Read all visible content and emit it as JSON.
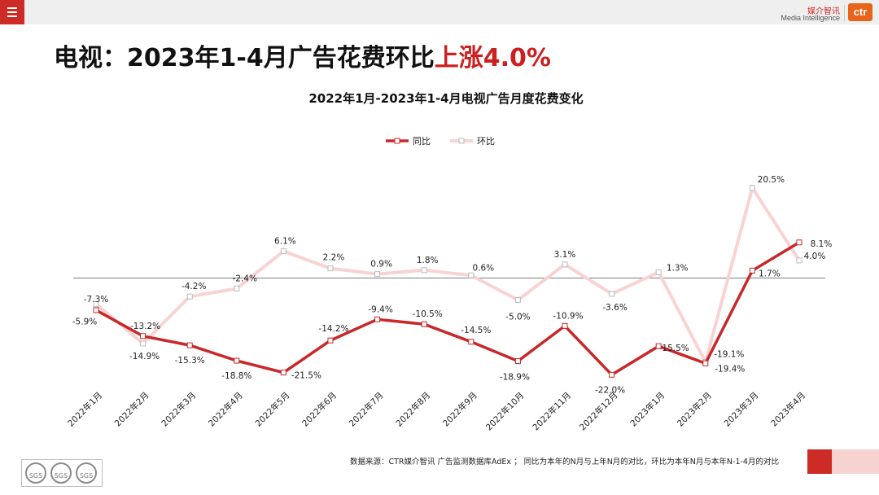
{
  "header": {
    "menu_icon": "hamburger-menu-icon",
    "logo_cn": "媒介智讯",
    "logo_en": "Media Intelligence",
    "logo_mark": "ctr"
  },
  "title": {
    "prefix": "电视：2023年1-4月广告花费环比",
    "highlight": "上涨4.0%",
    "highlight_color": "#cc1f1f"
  },
  "footer": {
    "source": "数据来源：CTR媒介智讯 广告监测数据库AdEx ； 同比为本年的N月与上年N月的对比，环比为本年N月与本年N-1-4月的对比",
    "badges": [
      "SGS",
      "SGS",
      "SGS"
    ]
  },
  "chart_data": {
    "type": "line",
    "title": "2022年1月-2023年1-4月电视广告月度花费变化",
    "categories": [
      "2022年1月",
      "2022年2月",
      "2022年3月",
      "2022年4月",
      "2022年5月",
      "2022年6月",
      "2022年7月",
      "2022年8月",
      "2022年9月",
      "2022年10月",
      "2022年11月",
      "2022年12月",
      "2023年1月",
      "2023年2月",
      "2023年3月",
      "2023年4月"
    ],
    "series": [
      {
        "name": "同比",
        "color": "#c8282a",
        "values": [
          -7.3,
          -13.2,
          -15.3,
          -18.8,
          -21.5,
          -14.2,
          -9.4,
          -10.5,
          -14.5,
          -18.9,
          -10.9,
          -22.0,
          -15.5,
          -19.4,
          1.7,
          8.1
        ]
      },
      {
        "name": "环比",
        "color": "#f8d3d2",
        "values": [
          -5.9,
          -14.9,
          -4.2,
          -2.4,
          6.1,
          2.2,
          0.9,
          1.8,
          0.6,
          -5.0,
          3.1,
          -3.6,
          1.3,
          -19.1,
          20.5,
          4.0
        ]
      }
    ],
    "labels": {
      "同比": [
        "-7.3%",
        "-13.2%",
        "-15.3%",
        "-18.8%",
        "-21.5%",
        "-14.2%",
        "-9.4%",
        "-10.5%",
        "-14.5%",
        "-18.9%",
        "-10.9%",
        "-22.0%",
        "-15.5%",
        "-19.4%",
        "1.7%",
        "8.1%"
      ],
      "环比": [
        "-5.9%",
        "-14.9%",
        "-4.2%",
        "-2.4%",
        "6.1%",
        "2.2%",
        "0.9%",
        "1.8%",
        "0.6%",
        "-5.0%",
        "3.1%",
        "-3.6%",
        "1.3%",
        "-19.1%",
        "20.5%",
        "4.0%"
      ]
    },
    "legend_position": "top-center",
    "grid": false,
    "zero_line": true,
    "ylim": [
      -30,
      25
    ]
  }
}
